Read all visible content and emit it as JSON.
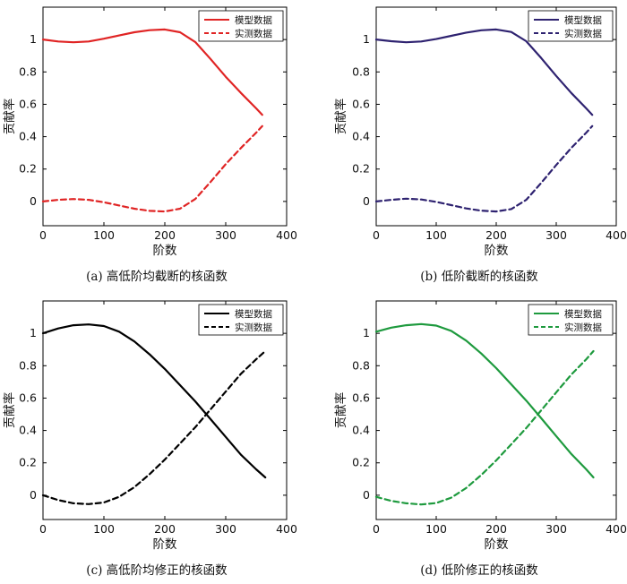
{
  "chart_data": [
    {
      "type": "line",
      "caption": "(a) 高低阶均截断的核函数",
      "xlabel": "阶数",
      "ylabel": "贡献率",
      "xlim": [
        0,
        400
      ],
      "ylim": [
        -0.15,
        1.2
      ],
      "xticks": [
        0,
        100,
        200,
        300,
        400
      ],
      "yticks": [
        0,
        0.2,
        0.4,
        0.6,
        0.8,
        1
      ],
      "legend_position": "top-right",
      "color": "#e02424",
      "series": [
        {
          "name": "模型数据",
          "style": "solid",
          "x": [
            0,
            25,
            50,
            75,
            100,
            125,
            150,
            175,
            200,
            225,
            250,
            275,
            300,
            325,
            350,
            360
          ],
          "y": [
            1.0,
            0.988,
            0.983,
            0.988,
            1.005,
            1.025,
            1.045,
            1.058,
            1.062,
            1.045,
            0.985,
            0.88,
            0.77,
            0.67,
            0.575,
            0.535
          ]
        },
        {
          "name": "实测数据",
          "style": "dashed",
          "x": [
            0,
            25,
            50,
            75,
            100,
            125,
            150,
            175,
            200,
            225,
            250,
            275,
            300,
            325,
            350,
            360
          ],
          "y": [
            0.0,
            0.01,
            0.015,
            0.01,
            -0.005,
            -0.025,
            -0.045,
            -0.058,
            -0.062,
            -0.045,
            0.015,
            0.12,
            0.23,
            0.33,
            0.425,
            0.465
          ]
        }
      ]
    },
    {
      "type": "line",
      "caption": "(b) 低阶截断的核函数",
      "xlabel": "阶数",
      "ylabel": "贡献率",
      "xlim": [
        0,
        400
      ],
      "ylim": [
        -0.15,
        1.2
      ],
      "xticks": [
        0,
        100,
        200,
        300,
        400
      ],
      "yticks": [
        0,
        0.2,
        0.4,
        0.6,
        0.8,
        1
      ],
      "legend_position": "top-right",
      "color": "#2e2270",
      "series": [
        {
          "name": "模型数据",
          "style": "solid",
          "x": [
            0,
            25,
            50,
            75,
            100,
            125,
            150,
            175,
            200,
            225,
            250,
            275,
            300,
            325,
            350,
            360
          ],
          "y": [
            1.0,
            0.99,
            0.983,
            0.988,
            1.003,
            1.023,
            1.043,
            1.057,
            1.062,
            1.047,
            0.99,
            0.885,
            0.775,
            0.67,
            0.575,
            0.535
          ]
        },
        {
          "name": "实测数据",
          "style": "dashed",
          "x": [
            0,
            25,
            50,
            75,
            100,
            125,
            150,
            175,
            200,
            225,
            250,
            275,
            300,
            325,
            350,
            360
          ],
          "y": [
            0.0,
            0.01,
            0.017,
            0.012,
            -0.003,
            -0.023,
            -0.043,
            -0.057,
            -0.062,
            -0.047,
            0.01,
            0.115,
            0.225,
            0.33,
            0.425,
            0.465
          ]
        }
      ]
    },
    {
      "type": "line",
      "caption": "(c) 高低阶均修正的核函数",
      "xlabel": "阶数",
      "ylabel": "贡献率",
      "xlim": [
        0,
        400
      ],
      "ylim": [
        -0.15,
        1.2
      ],
      "xticks": [
        0,
        100,
        200,
        300,
        400
      ],
      "yticks": [
        0,
        0.2,
        0.4,
        0.6,
        0.8,
        1
      ],
      "legend_position": "top-right",
      "color": "#000000",
      "series": [
        {
          "name": "模型数据",
          "style": "solid",
          "x": [
            0,
            25,
            50,
            75,
            100,
            125,
            150,
            175,
            200,
            225,
            250,
            275,
            300,
            325,
            350,
            365
          ],
          "y": [
            1.0,
            1.03,
            1.05,
            1.055,
            1.045,
            1.01,
            0.95,
            0.87,
            0.78,
            0.68,
            0.58,
            0.47,
            0.36,
            0.25,
            0.16,
            0.11
          ]
        },
        {
          "name": "实测数据",
          "style": "dashed",
          "x": [
            0,
            25,
            50,
            75,
            100,
            125,
            150,
            175,
            200,
            225,
            250,
            275,
            300,
            325,
            350,
            365
          ],
          "y": [
            0.0,
            -0.03,
            -0.05,
            -0.055,
            -0.045,
            -0.01,
            0.05,
            0.13,
            0.22,
            0.32,
            0.42,
            0.53,
            0.64,
            0.75,
            0.84,
            0.89
          ]
        }
      ]
    },
    {
      "type": "line",
      "caption": "(d) 低阶修正的核函数",
      "xlabel": "阶数",
      "ylabel": "贡献率",
      "xlim": [
        0,
        400
      ],
      "ylim": [
        -0.15,
        1.2
      ],
      "xticks": [
        0,
        100,
        200,
        300,
        400
      ],
      "yticks": [
        0,
        0.2,
        0.4,
        0.6,
        0.8,
        1
      ],
      "legend_position": "top-right",
      "color": "#1e9a3e",
      "series": [
        {
          "name": "模型数据",
          "style": "solid",
          "x": [
            0,
            25,
            50,
            75,
            100,
            125,
            150,
            175,
            200,
            225,
            250,
            275,
            300,
            325,
            350,
            362
          ],
          "y": [
            1.01,
            1.035,
            1.05,
            1.057,
            1.048,
            1.015,
            0.955,
            0.875,
            0.785,
            0.685,
            0.585,
            0.475,
            0.365,
            0.255,
            0.16,
            0.11
          ]
        },
        {
          "name": "实测数据",
          "style": "dashed",
          "x": [
            0,
            25,
            50,
            75,
            100,
            125,
            150,
            175,
            200,
            225,
            250,
            275,
            300,
            325,
            350,
            362
          ],
          "y": [
            -0.01,
            -0.035,
            -0.05,
            -0.057,
            -0.048,
            -0.015,
            0.045,
            0.125,
            0.215,
            0.315,
            0.415,
            0.525,
            0.635,
            0.745,
            0.84,
            0.89
          ]
        }
      ]
    }
  ]
}
